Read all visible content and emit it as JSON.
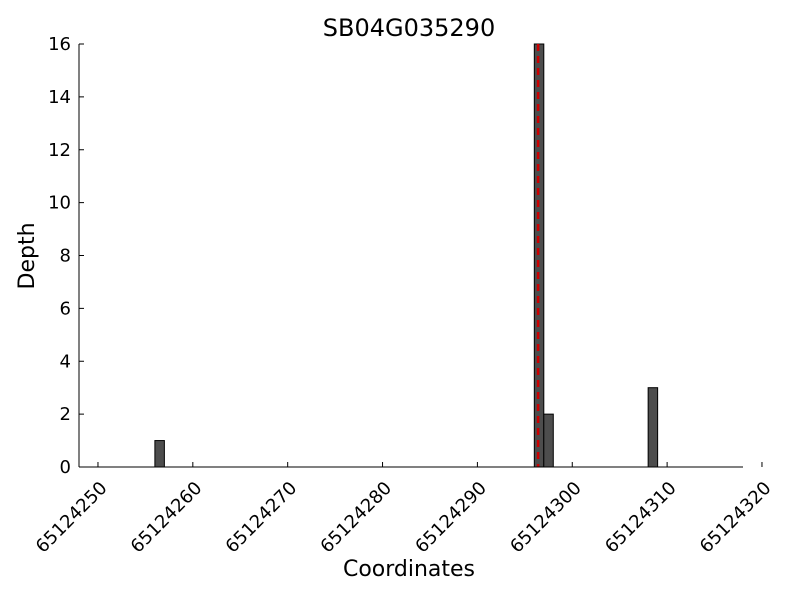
{
  "chart_data": {
    "type": "bar",
    "title": "SB04G035290",
    "xlabel": "Coordinates",
    "ylabel": "Depth",
    "xlim": [
      65124248,
      65124318
    ],
    "ylim": [
      0,
      16
    ],
    "xticks": [
      65124250,
      65124260,
      65124270,
      65124280,
      65124290,
      65124300,
      65124310,
      65124320
    ],
    "yticks": [
      0,
      2,
      4,
      6,
      8,
      10,
      12,
      14,
      16
    ],
    "bar_width": 1,
    "series": [
      {
        "x": [
          65124256,
          65124296,
          65124297,
          65124308
        ],
        "values": [
          1,
          16,
          2,
          3
        ]
      }
    ],
    "marker_line_x": 65124296.4,
    "grid": false,
    "colors": {
      "bar": "#4d4d4d",
      "marker": "#cc0000",
      "axis": "#000000"
    }
  }
}
